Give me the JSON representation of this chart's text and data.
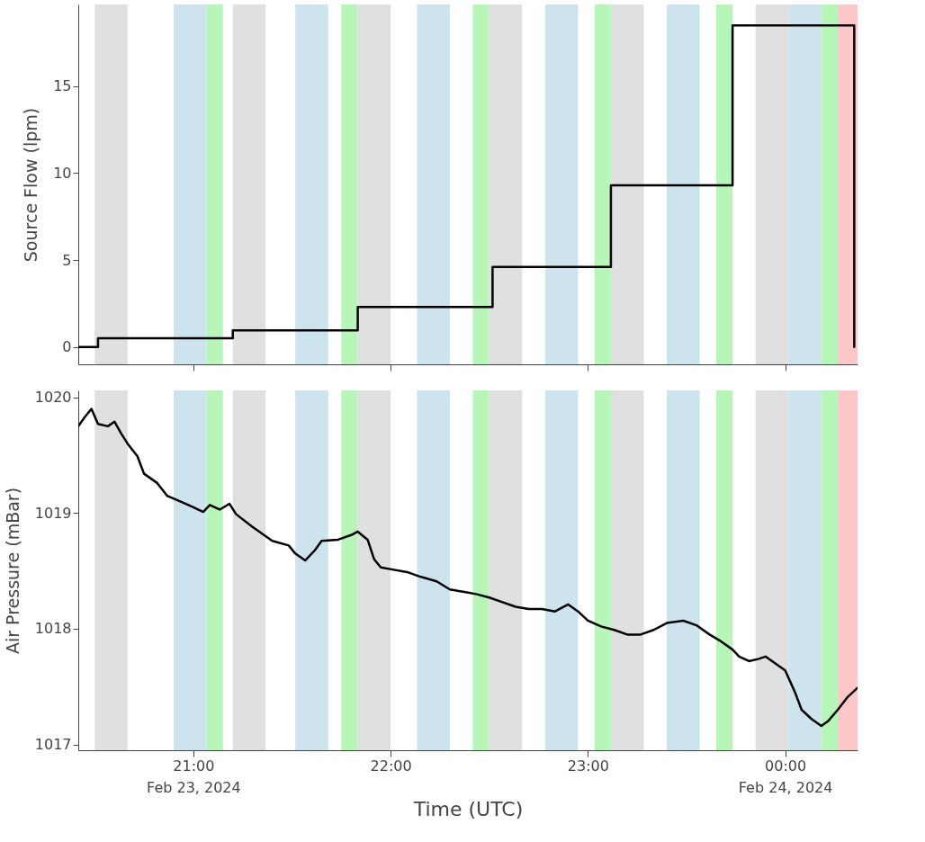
{
  "chart_data": [
    {
      "type": "step",
      "ylabel": "Source Flow (lpm)",
      "tick_labels": "y",
      "grid": false,
      "xlim": [
        "2024-02-23T20:25",
        "2024-02-24T00:22"
      ],
      "xticks": [
        {
          "value": "2024-02-23T21:00",
          "label": null
        },
        {
          "value": "2024-02-23T22:00",
          "label": null
        },
        {
          "value": "2024-02-23T23:00",
          "label": null
        },
        {
          "value": "2024-02-24T00:00",
          "label": null
        }
      ],
      "ylim": [
        -1,
        19.7
      ],
      "yticks": [
        0,
        5,
        10,
        15
      ],
      "series": [
        {
          "color": "#000000",
          "x": [
            "2024-02-23T20:25",
            "2024-02-23T20:31",
            "2024-02-23T21:12",
            "2024-02-23T21:50",
            "2024-02-23T22:31",
            "2024-02-23T23:07",
            "2024-02-23T23:44",
            "2024-02-24T00:21"
          ],
          "values": [
            0,
            0.5,
            0.95,
            2.3,
            4.6,
            9.3,
            18.5,
            0
          ]
        }
      ],
      "bands": [
        {
          "axis": "x",
          "from": "2024-02-23T20:30",
          "to": "2024-02-23T20:40",
          "color": "#e0e0e0"
        },
        {
          "axis": "x",
          "from": "2024-02-23T20:54",
          "to": "2024-02-23T21:04",
          "color": "#cde4ef"
        },
        {
          "axis": "x",
          "from": "2024-02-23T21:04",
          "to": "2024-02-23T21:09",
          "color": "#b8f5b8"
        },
        {
          "axis": "x",
          "from": "2024-02-23T21:12",
          "to": "2024-02-23T21:22",
          "color": "#e0e0e0"
        },
        {
          "axis": "x",
          "from": "2024-02-23T21:31",
          "to": "2024-02-23T21:41",
          "color": "#cde4ef"
        },
        {
          "axis": "x",
          "from": "2024-02-23T21:45",
          "to": "2024-02-23T21:50",
          "color": "#b8f5b8"
        },
        {
          "axis": "x",
          "from": "2024-02-23T21:50",
          "to": "2024-02-23T22:00",
          "color": "#e0e0e0"
        },
        {
          "axis": "x",
          "from": "2024-02-23T22:08",
          "to": "2024-02-23T22:18",
          "color": "#cde4ef"
        },
        {
          "axis": "x",
          "from": "2024-02-23T22:25",
          "to": "2024-02-23T22:30",
          "color": "#b8f5b8"
        },
        {
          "axis": "x",
          "from": "2024-02-23T22:30",
          "to": "2024-02-23T22:40",
          "color": "#e0e0e0"
        },
        {
          "axis": "x",
          "from": "2024-02-23T22:47",
          "to": "2024-02-23T22:57",
          "color": "#cde4ef"
        },
        {
          "axis": "x",
          "from": "2024-02-23T23:02",
          "to": "2024-02-23T23:07",
          "color": "#b8f5b8"
        },
        {
          "axis": "x",
          "from": "2024-02-23T23:07",
          "to": "2024-02-23T23:17",
          "color": "#e0e0e0"
        },
        {
          "axis": "x",
          "from": "2024-02-23T23:24",
          "to": "2024-02-23T23:34",
          "color": "#cde4ef"
        },
        {
          "axis": "x",
          "from": "2024-02-23T23:39",
          "to": "2024-02-23T23:44",
          "color": "#b8f5b8"
        },
        {
          "axis": "x",
          "from": "2024-02-23T23:51",
          "to": "2024-02-24T00:01",
          "color": "#e0e0e0"
        },
        {
          "axis": "x",
          "from": "2024-02-24T00:01",
          "to": "2024-02-24T00:11",
          "color": "#cde4ef"
        },
        {
          "axis": "x",
          "from": "2024-02-24T00:11",
          "to": "2024-02-24T00:16",
          "color": "#b8f5b8"
        },
        {
          "axis": "x",
          "from": "2024-02-24T00:16",
          "to": "2024-02-24T00:22",
          "color": "#ffc8c8"
        }
      ]
    },
    {
      "type": "line",
      "xlabel": "Time (UTC)",
      "ylabel": "Air Pressure (mBar)",
      "grid": false,
      "xlim": [
        "2024-02-23T20:25",
        "2024-02-24T00:22"
      ],
      "xticks": [
        {
          "value": "2024-02-23T21:00",
          "label": "21:00\nFeb 23, 2024"
        },
        {
          "value": "2024-02-23T22:00",
          "label": "22:00"
        },
        {
          "value": "2024-02-23T23:00",
          "label": "23:00"
        },
        {
          "value": "2024-02-24T00:00",
          "label": "00:00\nFeb 24, 2024"
        }
      ],
      "ylim": [
        1016.95,
        1020.06
      ],
      "yticks": [
        1017,
        1018,
        1019,
        1020
      ],
      "series": [
        {
          "color": "#000000",
          "x": [
            "2024-02-23T20:25",
            "2024-02-23T20:27",
            "2024-02-23T20:29",
            "2024-02-23T20:31",
            "2024-02-23T20:34",
            "2024-02-23T20:36",
            "2024-02-23T20:38",
            "2024-02-23T20:40",
            "2024-02-23T20:43",
            "2024-02-23T20:45",
            "2024-02-23T20:49",
            "2024-02-23T20:52",
            "2024-02-23T20:56",
            "2024-02-23T21:00",
            "2024-02-23T21:03",
            "2024-02-23T21:05",
            "2024-02-23T21:08",
            "2024-02-23T21:11",
            "2024-02-23T21:13",
            "2024-02-23T21:18",
            "2024-02-23T21:21",
            "2024-02-23T21:24",
            "2024-02-23T21:29",
            "2024-02-23T21:31",
            "2024-02-23T21:34",
            "2024-02-23T21:37",
            "2024-02-23T21:39",
            "2024-02-23T21:44",
            "2024-02-23T21:48",
            "2024-02-23T21:50",
            "2024-02-23T21:53",
            "2024-02-23T21:55",
            "2024-02-23T21:57",
            "2024-02-23T22:01",
            "2024-02-23T22:05",
            "2024-02-23T22:09",
            "2024-02-23T22:14",
            "2024-02-23T22:18",
            "2024-02-23T22:22",
            "2024-02-23T22:26",
            "2024-02-23T22:30",
            "2024-02-23T22:34",
            "2024-02-23T22:38",
            "2024-02-23T22:42",
            "2024-02-23T22:46",
            "2024-02-23T22:50",
            "2024-02-23T22:54",
            "2024-02-23T22:57",
            "2024-02-23T23:00",
            "2024-02-23T23:04",
            "2024-02-23T23:08",
            "2024-02-23T23:12",
            "2024-02-23T23:16",
            "2024-02-23T23:20",
            "2024-02-23T23:24",
            "2024-02-23T23:29",
            "2024-02-23T23:33",
            "2024-02-23T23:37",
            "2024-02-23T23:40",
            "2024-02-23T23:44",
            "2024-02-23T23:46",
            "2024-02-23T23:49",
            "2024-02-23T23:52",
            "2024-02-23T23:54",
            "2024-02-23T23:57",
            "2024-02-24T00:00",
            "2024-02-24T00:03",
            "2024-02-24T00:05",
            "2024-02-24T00:08",
            "2024-02-24T00:11",
            "2024-02-24T00:13",
            "2024-02-24T00:16",
            "2024-02-24T00:19",
            "2024-02-24T00:22"
          ],
          "values": [
            1019.75,
            1019.83,
            1019.9,
            1019.77,
            1019.75,
            1019.79,
            1019.69,
            1019.6,
            1019.49,
            1019.34,
            1019.26,
            1019.15,
            1019.1,
            1019.05,
            1019.01,
            1019.07,
            1019.03,
            1019.08,
            1018.99,
            1018.88,
            1018.82,
            1018.76,
            1018.72,
            1018.65,
            1018.59,
            1018.68,
            1018.76,
            1018.77,
            1018.81,
            1018.84,
            1018.77,
            1018.6,
            1018.53,
            1018.51,
            1018.49,
            1018.45,
            1018.41,
            1018.34,
            1018.32,
            1018.3,
            1018.27,
            1018.23,
            1018.19,
            1018.17,
            1018.17,
            1018.15,
            1018.21,
            1018.15,
            1018.07,
            1018.02,
            1017.99,
            1017.95,
            1017.95,
            1017.99,
            1018.05,
            1018.07,
            1018.03,
            1017.95,
            1017.9,
            1017.82,
            1017.76,
            1017.72,
            1017.74,
            1017.76,
            1017.7,
            1017.64,
            1017.45,
            1017.3,
            1017.22,
            1017.16,
            1017.2,
            1017.3,
            1017.41,
            1017.49
          ]
        }
      ],
      "bands": [
        {
          "axis": "x",
          "from": "2024-02-23T20:30",
          "to": "2024-02-23T20:40",
          "color": "#e0e0e0"
        },
        {
          "axis": "x",
          "from": "2024-02-23T20:54",
          "to": "2024-02-23T21:04",
          "color": "#cde4ef"
        },
        {
          "axis": "x",
          "from": "2024-02-23T21:04",
          "to": "2024-02-23T21:09",
          "color": "#b8f5b8"
        },
        {
          "axis": "x",
          "from": "2024-02-23T21:12",
          "to": "2024-02-23T21:22",
          "color": "#e0e0e0"
        },
        {
          "axis": "x",
          "from": "2024-02-23T21:31",
          "to": "2024-02-23T21:41",
          "color": "#cde4ef"
        },
        {
          "axis": "x",
          "from": "2024-02-23T21:45",
          "to": "2024-02-23T21:50",
          "color": "#b8f5b8"
        },
        {
          "axis": "x",
          "from": "2024-02-23T21:50",
          "to": "2024-02-23T22:00",
          "color": "#e0e0e0"
        },
        {
          "axis": "x",
          "from": "2024-02-23T22:08",
          "to": "2024-02-23T22:18",
          "color": "#cde4ef"
        },
        {
          "axis": "x",
          "from": "2024-02-23T22:25",
          "to": "2024-02-23T22:30",
          "color": "#b8f5b8"
        },
        {
          "axis": "x",
          "from": "2024-02-23T22:30",
          "to": "2024-02-23T22:40",
          "color": "#e0e0e0"
        },
        {
          "axis": "x",
          "from": "2024-02-23T22:47",
          "to": "2024-02-23T22:57",
          "color": "#cde4ef"
        },
        {
          "axis": "x",
          "from": "2024-02-23T23:02",
          "to": "2024-02-23T23:07",
          "color": "#b8f5b8"
        },
        {
          "axis": "x",
          "from": "2024-02-23T23:07",
          "to": "2024-02-23T23:17",
          "color": "#e0e0e0"
        },
        {
          "axis": "x",
          "from": "2024-02-23T23:24",
          "to": "2024-02-23T23:34",
          "color": "#cde4ef"
        },
        {
          "axis": "x",
          "from": "2024-02-23T23:39",
          "to": "2024-02-23T23:44",
          "color": "#b8f5b8"
        },
        {
          "axis": "x",
          "from": "2024-02-23T23:51",
          "to": "2024-02-24T00:01",
          "color": "#e0e0e0"
        },
        {
          "axis": "x",
          "from": "2024-02-24T00:01",
          "to": "2024-02-24T00:11",
          "color": "#cde4ef"
        },
        {
          "axis": "x",
          "from": "2024-02-24T00:11",
          "to": "2024-02-24T00:16",
          "color": "#b8f5b8"
        },
        {
          "axis": "x",
          "from": "2024-02-24T00:16",
          "to": "2024-02-24T00:22",
          "color": "#ffc8c8"
        }
      ]
    }
  ]
}
